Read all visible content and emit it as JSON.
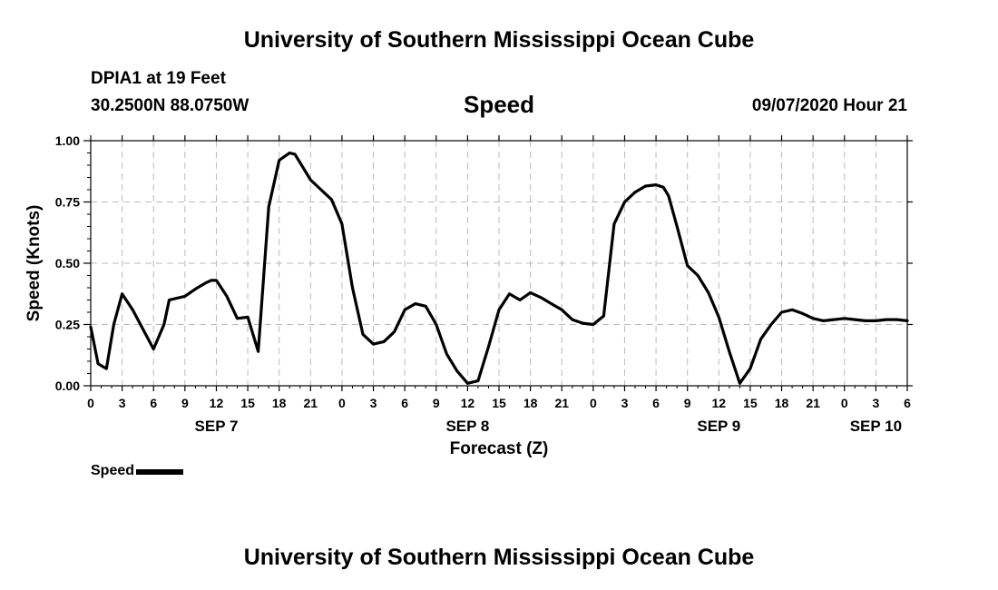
{
  "header": {
    "title": "University of Southern Mississippi Ocean Cube",
    "station": "DPIA1 at 19 Feet",
    "coords": "30.2500N 88.0750W",
    "variable": "Speed",
    "datetime": "09/07/2020 Hour 21"
  },
  "footer": {
    "title": "University of Southern Mississippi Ocean Cube"
  },
  "legend": {
    "label": "Speed"
  },
  "chart_data": {
    "type": "line",
    "title": "Speed",
    "xlabel": "Forecast (Z)",
    "ylabel": "Speed (Knots)",
    "xlim": [
      0,
      78
    ],
    "ylim": [
      0,
      1
    ],
    "grid": true,
    "legend_position": "bottom-left",
    "line_color": "#000000",
    "grid_color": "#bbbbbb",
    "yticks": [
      0,
      0.25,
      0.5,
      0.75,
      1.0
    ],
    "ytick_labels": [
      "0.00",
      "0.25",
      "0.50",
      "0.75",
      "1.00"
    ],
    "xticks": [
      0,
      3,
      6,
      9,
      12,
      15,
      18,
      21,
      24,
      27,
      30,
      33,
      36,
      39,
      42,
      45,
      48,
      51,
      54,
      57,
      60,
      63,
      66,
      69,
      72,
      75,
      78
    ],
    "xtick_labels": [
      "0",
      "3",
      "6",
      "9",
      "12",
      "15",
      "18",
      "21",
      "0",
      "3",
      "6",
      "9",
      "12",
      "15",
      "18",
      "21",
      "0",
      "3",
      "6",
      "9",
      "12",
      "15",
      "18",
      "21",
      "0",
      "3",
      "6"
    ],
    "day_labels": [
      {
        "x": 12,
        "label": "SEP 7"
      },
      {
        "x": 36,
        "label": "SEP 8"
      },
      {
        "x": 60,
        "label": "SEP 9"
      },
      {
        "x": 75,
        "label": "SEP 10"
      }
    ],
    "series": [
      {
        "name": "Speed",
        "x": [
          0,
          0.7,
          1.5,
          2.2,
          3,
          4,
          5,
          6,
          7,
          7.5,
          9,
          10,
          11,
          11.5,
          12,
          13,
          14,
          15,
          16,
          17,
          18,
          19,
          19.5,
          20,
          21,
          22,
          23,
          24,
          25,
          26,
          27,
          28,
          29,
          30,
          31,
          32,
          33,
          34,
          35,
          36,
          37,
          38,
          39,
          40,
          41,
          42,
          43,
          44,
          45,
          46,
          47,
          48,
          49,
          50,
          51,
          52,
          53,
          54,
          54.7,
          55.2,
          56,
          57,
          58,
          59,
          60,
          61,
          62,
          63,
          64,
          65,
          66,
          67,
          68,
          69,
          70,
          71,
          72,
          73,
          74,
          75,
          76,
          77,
          78
        ],
        "y": [
          0.24,
          0.09,
          0.07,
          0.25,
          0.375,
          0.31,
          0.23,
          0.15,
          0.25,
          0.35,
          0.365,
          0.395,
          0.42,
          0.43,
          0.43,
          0.365,
          0.275,
          0.28,
          0.14,
          0.73,
          0.92,
          0.95,
          0.945,
          0.91,
          0.84,
          0.8,
          0.76,
          0.66,
          0.4,
          0.21,
          0.17,
          0.18,
          0.22,
          0.31,
          0.335,
          0.325,
          0.25,
          0.13,
          0.06,
          0.01,
          0.02,
          0.16,
          0.31,
          0.375,
          0.35,
          0.38,
          0.36,
          0.335,
          0.31,
          0.27,
          0.255,
          0.25,
          0.285,
          0.66,
          0.75,
          0.79,
          0.815,
          0.82,
          0.81,
          0.775,
          0.65,
          0.49,
          0.45,
          0.38,
          0.28,
          0.14,
          0.01,
          0.07,
          0.19,
          0.25,
          0.3,
          0.31,
          0.295,
          0.275,
          0.265,
          0.27,
          0.275,
          0.27,
          0.265,
          0.265,
          0.27,
          0.27,
          0.265
        ]
      }
    ]
  }
}
